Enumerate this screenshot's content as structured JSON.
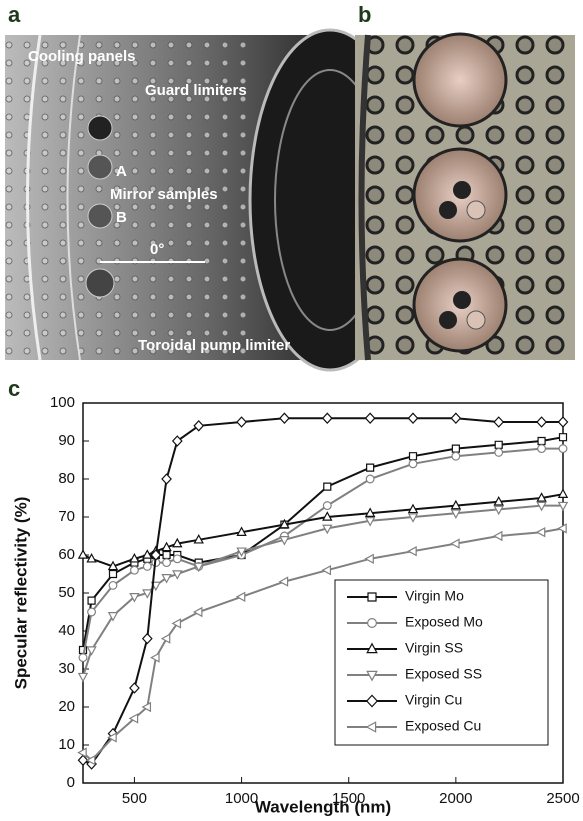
{
  "panel_labels": [
    "a",
    "b",
    "c"
  ],
  "photo_a": {
    "labels": [
      "Cooling panels",
      "Guard limiters",
      "A",
      "Mirror samples",
      "B",
      "0°",
      "Toroidal pump limiter"
    ]
  },
  "chart_data": {
    "type": "line",
    "xlabel": "Wavelength (nm)",
    "ylabel": "Specular reflectivity (%)",
    "x": [
      260,
      300,
      400,
      500,
      560,
      600,
      650,
      700,
      800,
      1000,
      1200,
      1400,
      1600,
      1800,
      2000,
      2200,
      2400,
      2500
    ],
    "xlim": [
      260,
      2500
    ],
    "xticks": [
      500,
      1000,
      1500,
      2000,
      2500
    ],
    "ylim": [
      0,
      100
    ],
    "yticks": [
      0,
      10,
      20,
      30,
      40,
      50,
      60,
      70,
      80,
      90,
      100
    ],
    "legend": "lower right",
    "series": [
      {
        "name": "Virgin Mo",
        "color": "#111111",
        "marker": "square",
        "values": [
          35,
          48,
          55,
          58,
          59,
          60,
          60,
          60,
          58,
          60,
          68,
          78,
          83,
          86,
          88,
          89,
          90,
          91
        ]
      },
      {
        "name": "Exposed Mo",
        "color": "#808080",
        "marker": "circle",
        "values": [
          33,
          45,
          52,
          56,
          57,
          58,
          58,
          59,
          57,
          60,
          65,
          73,
          80,
          84,
          86,
          87,
          88,
          88
        ]
      },
      {
        "name": "Virgin SS",
        "color": "#111111",
        "marker": "triangle-up",
        "values": [
          60,
          59,
          57,
          59,
          60,
          61,
          62,
          63,
          64,
          66,
          68,
          70,
          71,
          72,
          73,
          74,
          75,
          76
        ]
      },
      {
        "name": "Exposed SS",
        "color": "#808080",
        "marker": "triangle-down",
        "values": [
          28,
          35,
          44,
          49,
          50,
          52,
          54,
          55,
          57,
          61,
          64,
          67,
          69,
          70,
          71,
          72,
          73,
          73
        ]
      },
      {
        "name": "Virgin Cu",
        "color": "#111111",
        "marker": "diamond",
        "values": [
          6,
          5,
          13,
          25,
          38,
          60,
          80,
          90,
          94,
          95,
          96,
          96,
          96,
          96,
          96,
          95,
          95,
          95
        ]
      },
      {
        "name": "Exposed Cu",
        "color": "#808080",
        "marker": "triangle-left",
        "values": [
          8,
          6,
          12,
          17,
          20,
          33,
          38,
          42,
          45,
          49,
          53,
          56,
          59,
          61,
          63,
          65,
          66,
          67
        ]
      }
    ]
  }
}
